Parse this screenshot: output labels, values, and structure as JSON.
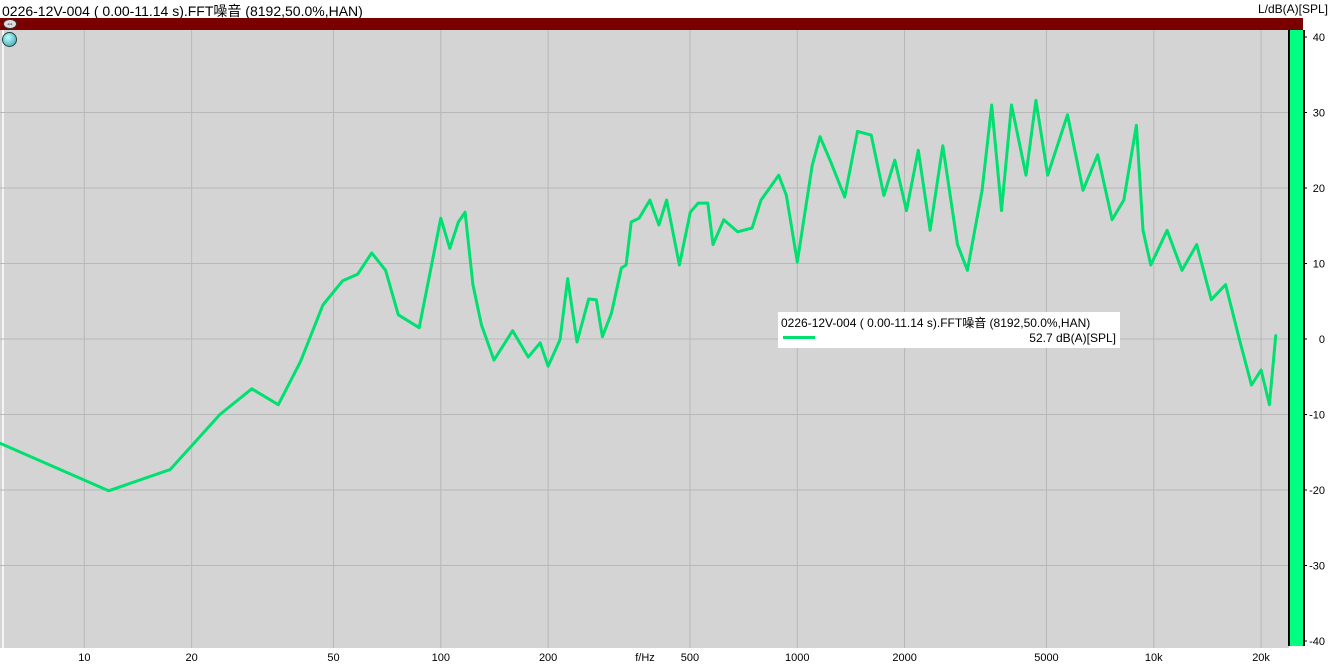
{
  "header": {
    "title": "0226-12V-004 ( 0.00-11.14 s).FFT噪音 (8192,50.0%,HAN)",
    "unit_label": "L/dB(A)[SPL]"
  },
  "icons": {
    "cursor": "horizontal-arrows-icon",
    "marker": "marker-ball-icon"
  },
  "legend": {
    "entry": "0226-12V-004 ( 0.00-11.14 s).FFT噪音 (8192,50.0%,HAN)",
    "value": "52.7 dB(A)[SPL]"
  },
  "colors": {
    "series": "#00e070",
    "background": "#d4d4d4",
    "header_bar": "#7a0000",
    "level_bar": "#00ff80"
  },
  "chart_data": {
    "type": "line",
    "xlabel": "f/Hz",
    "ylabel": "L/dB(A)[SPL]",
    "xscale": "log",
    "xlim": [
      5.8,
      23800
    ],
    "ylim": [
      -40,
      40
    ],
    "grid": true,
    "legend": "center-right",
    "xticks": [
      {
        "v": 10,
        "l": "10"
      },
      {
        "v": 20,
        "l": "20"
      },
      {
        "v": 50,
        "l": "50"
      },
      {
        "v": 100,
        "l": "100"
      },
      {
        "v": 200,
        "l": "200"
      },
      {
        "v": 500,
        "l": "500"
      },
      {
        "v": 1000,
        "l": "1000"
      },
      {
        "v": 2000,
        "l": "2000"
      },
      {
        "v": 5000,
        "l": "5000"
      },
      {
        "v": 10000,
        "l": "10k"
      },
      {
        "v": 20000,
        "l": "20k"
      }
    ],
    "yticks": [
      {
        "v": 40,
        "l": "40"
      },
      {
        "v": 30,
        "l": "30"
      },
      {
        "v": 20,
        "l": "20"
      },
      {
        "v": 10,
        "l": "10"
      },
      {
        "v": 0,
        "l": "0"
      },
      {
        "v": -10,
        "l": "-10"
      },
      {
        "v": -20,
        "l": "-20"
      },
      {
        "v": -30,
        "l": "-30"
      },
      {
        "v": -40,
        "l": "-40"
      }
    ],
    "series": [
      {
        "x": [
          5.8,
          11.7,
          17.4,
          24,
          29.5,
          35,
          40.4,
          46.7,
          53,
          58.5,
          64,
          70,
          76,
          87,
          100,
          106,
          112,
          117,
          123,
          130,
          141,
          159,
          176,
          190,
          200,
          216,
          227,
          241,
          260,
          273,
          284,
          301,
          321,
          331,
          342,
          360,
          386,
          409,
          430,
          467,
          501,
          527,
          561,
          580,
          622,
          680,
          747,
          791,
          887,
          932,
          1000,
          1101,
          1158,
          1235,
          1358,
          1475,
          1612,
          1750,
          1877,
          2025,
          2185,
          2358,
          2560,
          2815,
          3000,
          3300,
          3510,
          3740,
          3990,
          4380,
          4670,
          5040,
          5730,
          6330,
          6960,
          7640,
          8240,
          8940,
          9330,
          9810,
          10900,
          12000,
          13200,
          14500,
          15900,
          17400,
          18800,
          20000,
          21100,
          22000
        ],
        "y": [
          -13.8,
          -20.1,
          -17.3,
          -10,
          -6.6,
          -8.7,
          -3,
          4.5,
          7.7,
          8.6,
          11.4,
          9.1,
          3.2,
          1.5,
          16,
          12,
          15.5,
          16.8,
          7.2,
          1.9,
          -2.8,
          1.1,
          -2.4,
          -0.5,
          -3.6,
          -0.1,
          8,
          -0.4,
          5.3,
          5.2,
          0.3,
          3.4,
          9.4,
          9.8,
          15.5,
          16,
          18.4,
          15.1,
          18.4,
          9.8,
          16.8,
          18,
          18,
          12.5,
          15.8,
          14.2,
          14.7,
          18.4,
          21.7,
          19,
          10.2,
          23,
          26.8,
          23.7,
          18.8,
          27.5,
          27,
          19,
          23.7,
          17,
          25,
          14.4,
          25.6,
          12.5,
          9.1,
          19.7,
          31,
          17,
          31,
          21.7,
          31.6,
          21.7,
          29.7,
          19.7,
          24.4,
          15.8,
          18.4,
          28.3,
          14.4,
          9.8,
          14.4,
          9.1,
          12.5,
          5.2,
          7.2,
          -0.1,
          -6.1,
          -4.1,
          -8.7,
          0.5
        ]
      }
    ]
  }
}
